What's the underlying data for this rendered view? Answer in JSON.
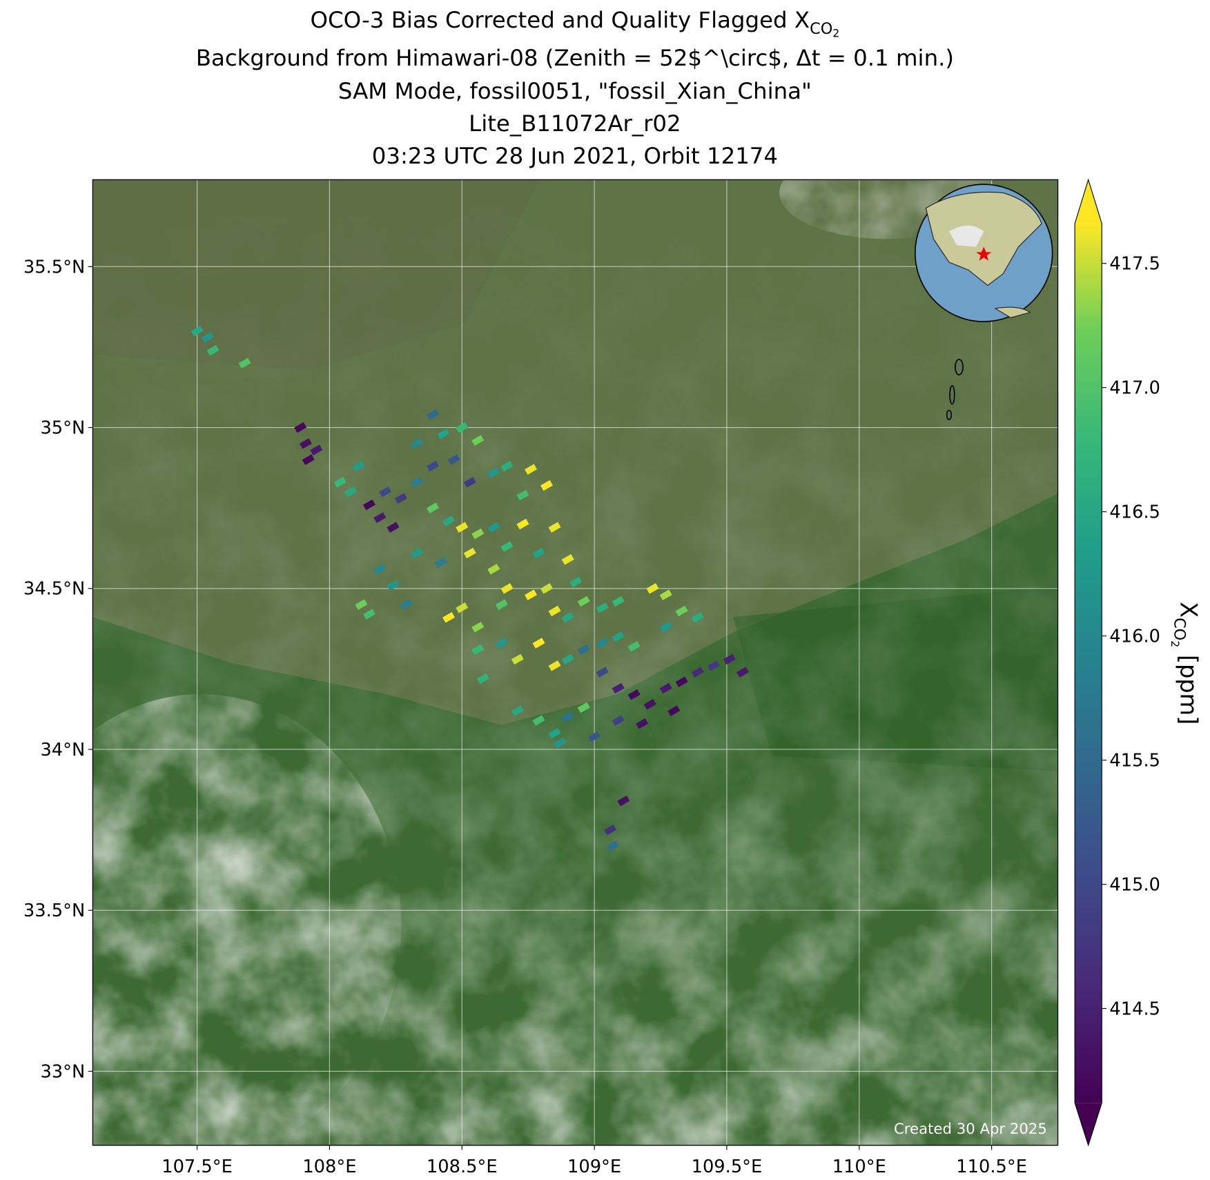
{
  "chart_data": {
    "type": "map",
    "title_lines": [
      "OCO-3 Bias Corrected and Quality Flagged X",
      "Background from Himawari-08 (Zenith = 52$^\\circ$, Δt =  0.1 min.)",
      "SAM Mode, fossil0051, \"fossil_Xian_China\"",
      "Lite_B11072Ar_r02",
      "03:23 UTC 28 Jun 2021, Orbit 12174"
    ],
    "title_subscript": [
      "CO",
      "2"
    ],
    "footer": "Created 30 Apr 2025",
    "xlim": [
      107.106,
      110.75
    ],
    "ylim": [
      32.77,
      35.77
    ],
    "xticks": [
      {
        "value": 107.5,
        "label": "107.5°E"
      },
      {
        "value": 108,
        "label": "108°E"
      },
      {
        "value": 108.5,
        "label": "108.5°E"
      },
      {
        "value": 109,
        "label": "109°E"
      },
      {
        "value": 109.5,
        "label": "109.5°E"
      },
      {
        "value": 110,
        "label": "110°E"
      },
      {
        "value": 110.5,
        "label": "110.5°E"
      }
    ],
    "yticks": [
      {
        "value": 33,
        "label": "33°N"
      },
      {
        "value": 33.5,
        "label": "33.5°N"
      },
      {
        "value": 34,
        "label": "34°N"
      },
      {
        "value": 34.5,
        "label": "34.5°N"
      },
      {
        "value": 35,
        "label": "35°N"
      },
      {
        "value": 35.5,
        "label": "35.5°N"
      }
    ],
    "grid": true,
    "colormap": "viridis",
    "clim": [
      414.12,
      417.66
    ],
    "cticks": [
      414.5,
      {
        "value": 415.0,
        "label": "415.0"
      },
      415.5,
      {
        "value": 416.0,
        "label": "416.0"
      },
      416.5,
      {
        "value": 417.0,
        "label": "417.0"
      },
      417.5
    ],
    "colorbar_label": [
      "X",
      "CO",
      "2",
      " [ppm]"
    ],
    "x": [
      107.5,
      107.54,
      107.56,
      107.68,
      107.89,
      107.91,
      107.95,
      107.92,
      108.04,
      108.08,
      108.11,
      108.15,
      108.19,
      108.24,
      108.27,
      108.21,
      108.33,
      108.39,
      108.43,
      108.5,
      108.56,
      108.47,
      108.39,
      108.33,
      108.53,
      108.62,
      108.67,
      108.76,
      108.82,
      108.73,
      108.39,
      108.45,
      108.5,
      108.56,
      108.62,
      108.73,
      108.85,
      108.33,
      108.42,
      108.53,
      108.62,
      108.67,
      108.79,
      108.9,
      108.93,
      108.19,
      108.24,
      108.29,
      108.12,
      108.15,
      108.45,
      108.5,
      108.56,
      108.65,
      108.67,
      108.76,
      108.82,
      108.85,
      108.9,
      108.96,
      109.03,
      109.09,
      108.56,
      108.65,
      108.71,
      108.79,
      108.85,
      108.9,
      108.96,
      109.03,
      109.09,
      109.15,
      109.22,
      109.27,
      109.33,
      109.39,
      109.27,
      109.03,
      109.09,
      109.15,
      109.21,
      109.27,
      109.33,
      109.39,
      109.45,
      109.51,
      109.56,
      109.3,
      109.18,
      109.09,
      109.0,
      108.71,
      108.79,
      108.85,
      108.9,
      108.87,
      108.96,
      109.11,
      109.06,
      109.07,
      108.58
    ],
    "y": [
      35.3,
      35.28,
      35.24,
      35.2,
      35.0,
      34.95,
      34.93,
      34.9,
      34.83,
      34.8,
      34.88,
      34.76,
      34.72,
      34.69,
      34.78,
      34.8,
      34.95,
      35.04,
      34.98,
      35.0,
      34.96,
      34.9,
      34.88,
      34.83,
      34.83,
      34.86,
      34.88,
      34.87,
      34.82,
      34.79,
      34.75,
      34.71,
      34.69,
      34.67,
      34.69,
      34.7,
      34.69,
      34.61,
      34.58,
      34.61,
      34.56,
      34.63,
      34.61,
      34.59,
      34.52,
      34.56,
      34.51,
      34.45,
      34.45,
      34.42,
      34.41,
      34.44,
      34.38,
      34.45,
      34.5,
      34.48,
      34.5,
      34.43,
      34.41,
      34.46,
      34.44,
      34.46,
      34.31,
      34.33,
      34.28,
      34.33,
      34.26,
      34.28,
      34.31,
      34.33,
      34.35,
      34.32,
      34.5,
      34.48,
      34.43,
      34.41,
      34.38,
      34.24,
      34.19,
      34.17,
      34.14,
      34.19,
      34.21,
      34.24,
      34.26,
      34.28,
      34.24,
      34.12,
      34.08,
      34.09,
      34.04,
      34.12,
      34.09,
      34.05,
      34.1,
      34.02,
      34.13,
      33.84,
      33.75,
      33.7,
      34.22
    ],
    "values": [
      416.5,
      416.2,
      416.8,
      417.0,
      414.2,
      414.3,
      414.4,
      414.2,
      416.8,
      416.5,
      416.3,
      414.2,
      414.4,
      414.3,
      414.8,
      415.0,
      416.0,
      415.5,
      416.4,
      416.8,
      417.2,
      415.2,
      415.0,
      415.8,
      414.8,
      416.2,
      416.6,
      417.6,
      417.7,
      416.9,
      417.1,
      416.5,
      417.6,
      417.3,
      416.2,
      417.7,
      417.6,
      416.3,
      415.8,
      417.6,
      417.4,
      416.8,
      416.4,
      417.6,
      416.6,
      416.0,
      416.2,
      415.8,
      417.2,
      416.9,
      417.7,
      417.5,
      417.3,
      417.0,
      417.6,
      417.7,
      417.5,
      417.6,
      416.5,
      417.2,
      416.6,
      416.8,
      416.8,
      416.2,
      417.5,
      417.7,
      417.6,
      416.5,
      415.6,
      416.0,
      416.4,
      416.9,
      417.6,
      417.4,
      417.2,
      416.6,
      416.2,
      415.0,
      414.5,
      414.2,
      414.3,
      414.4,
      414.2,
      414.6,
      414.8,
      414.5,
      414.4,
      414.2,
      414.3,
      414.9,
      415.2,
      416.5,
      416.9,
      416.4,
      415.6,
      416.2,
      417.1,
      414.3,
      414.7,
      415.6,
      416.7
    ]
  }
}
